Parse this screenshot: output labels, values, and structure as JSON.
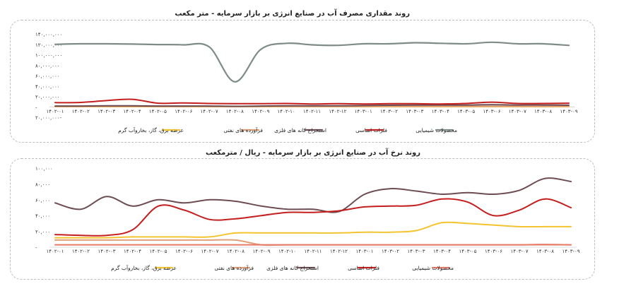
{
  "charts": [
    {
      "title": "روند مقداری مصرف آب در صنایع انرژی بر بازار سرمایه - متر مکعب",
      "y_tick_labels": [
        "-۲۰,۰۰۰,۰۰۰",
        "-",
        "۲۰,۰۰۰,۰۰۰",
        "۴۰,۰۰۰,۰۰۰",
        "۶۰,۰۰۰,۰۰۰",
        "۸۰,۰۰۰,۰۰۰",
        "۱۰۰,۰۰۰,۰۰۰",
        "۱۲۰,۰۰۰,۰۰۰",
        "۱۴۰,۰۰۰,۰۰۰"
      ],
      "legend": [
        "محصولات شیمیایی",
        "فلزات اساسی",
        "استخراج کانه های فلزی",
        "فرآورده های نفتی",
        "عرضه برق، گاز، بخاروآب گرم"
      ]
    },
    {
      "title": "روند نرخ آب در صنایع انرژی بر بازار سرمایه - ریال / مترمکعب",
      "y_tick_labels": [
        "-",
        "۲۰,۰۰۰",
        "۴۰,۰۰۰",
        "۶۰,۰۰۰",
        "۸۰,۰۰۰",
        "۱۰۰,۰۰۰"
      ],
      "legend": [
        "محصولات شیمیایی",
        "فلزات اساسی",
        "استخراج کانه های فلزی",
        "فرآورده های نفتی",
        "عرضه برق، گاز، بخاروآب گرم"
      ]
    }
  ],
  "chart_data": [
    {
      "type": "line",
      "title": "روند مقداری مصرف آب در صنایع انرژی بر بازار سرمایه - متر مکعب",
      "categories": [
        "۱۴۰۲-۰۱",
        "۱۴۰۲-۰۲",
        "۱۴۰۲-۰۳",
        "۱۴۰۲-۰۴",
        "۱۴۰۲-۰۵",
        "۱۴۰۲-۰۶",
        "۱۴۰۲-۰۷",
        "۱۴۰۲-۰۸",
        "۱۴۰۲-۰۹",
        "۱۴۰۲-۱۰",
        "۱۴۰۲-۱۱",
        "۱۴۰۲-۱۲",
        "۱۴۰۳-۰۱",
        "۱۴۰۳-۰۲",
        "۱۴۰۳-۰۳",
        "۱۴۰۳-۰۴",
        "۱۴۰۳-۰۵",
        "۱۴۰۳-۰۶",
        "۱۴۰۳-۰۷",
        "۱۴۰۳-۰۸",
        "۱۴۰۳-۰۹"
      ],
      "ylim": [
        -20000000,
        140000000
      ],
      "series": [
        {
          "name": "محصولات شیمیایی",
          "color": "#7f8c85",
          "values": [
            120000000,
            121000000,
            121000000,
            120500000,
            119500000,
            119000000,
            115000000,
            48000000,
            110000000,
            122000000,
            119000000,
            118000000,
            121000000,
            121000000,
            123000000,
            122000000,
            121000000,
            124000000,
            121000000,
            121000000,
            118000000
          ]
        },
        {
          "name": "فلزات اساسی",
          "color": "#c41e1e",
          "values": [
            8000000,
            8500000,
            12000000,
            14500000,
            7000000,
            7500000,
            6500000,
            6000000,
            6000000,
            6500000,
            5500000,
            6000000,
            5500000,
            6000000,
            6000000,
            5500000,
            6500000,
            9000000,
            6500000,
            6500000,
            7000000
          ]
        },
        {
          "name": "استخراج کانه های فلزی",
          "color": "#6d4c52",
          "values": [
            1500000,
            1500000,
            2000000,
            2000000,
            1500000,
            1500000,
            1500000,
            1000000,
            1500000,
            2000000,
            2000000,
            2000000,
            2500000,
            3000000,
            3500000,
            3500000,
            3500000,
            4000000,
            3500000,
            3500000,
            3000000
          ]
        },
        {
          "name": "فرآورده های نفتی",
          "color": "#e0a07a",
          "values": [
            800000,
            800000,
            900000,
            900000,
            800000,
            800000,
            800000,
            700000,
            800000,
            800000,
            800000,
            800000,
            900000,
            900000,
            900000,
            900000,
            900000,
            900000,
            900000,
            900000,
            900000
          ]
        },
        {
          "name": "عرضه برق، گاز، بخاروآب گرم",
          "color": "#f4c430",
          "values": [
            300000,
            300000,
            300000,
            300000,
            300000,
            300000,
            300000,
            300000,
            300000,
            300000,
            300000,
            300000,
            300000,
            300000,
            300000,
            300000,
            300000,
            300000,
            300000,
            300000,
            300000
          ]
        }
      ]
    },
    {
      "type": "line",
      "title": "روند نرخ آب در صنایع انرژی بر بازار سرمایه - ریال / مترمکعب",
      "categories": [
        "۱۴۰۲-۰۱",
        "۱۴۰۲-۰۲",
        "۱۴۰۲-۰۳",
        "۱۴۰۲-۰۴",
        "۱۴۰۲-۰۵",
        "۱۴۰۲-۰۶",
        "۱۴۰۲-۰۷",
        "۱۴۰۲-۰۸",
        "۱۴۰۲-۰۹",
        "۱۴۰۲-۱۰",
        "۱۴۰۲-۱۱",
        "۱۴۰۲-۱۲",
        "۱۴۰۳-۰۱",
        "۱۴۰۳-۰۲",
        "۱۴۰۳-۰۳",
        "۱۴۰۳-۰۴",
        "۱۴۰۳-۰۵",
        "۱۴۰۳-۰۶",
        "۱۴۰۳-۰۷",
        "۱۴۰۳-۰۸",
        "۱۴۰۳-۰۹"
      ],
      "ylim": [
        0,
        100000
      ],
      "series": [
        {
          "name": "محصولات شیمیایی",
          "color": "#e87a6a",
          "values": [
            3000,
            3000,
            3000,
            3000,
            3000,
            3000,
            3000,
            3000,
            3000,
            3000,
            3000,
            3000,
            3000,
            3000,
            3000,
            3000,
            3000,
            3000,
            3000,
            3500,
            3000
          ]
        },
        {
          "name": "فلزات اساسی",
          "color": "#c41e1e",
          "values": [
            16000,
            15000,
            15000,
            22000,
            52000,
            47000,
            35000,
            36000,
            40000,
            44000,
            44000,
            46000,
            51000,
            52000,
            53000,
            61000,
            57000,
            40000,
            47000,
            61000,
            50000
          ]
        },
        {
          "name": "استخراج کانه های فلزی",
          "color": "#6d4c52",
          "values": [
            56000,
            48000,
            64000,
            52000,
            60000,
            56000,
            60000,
            58000,
            52000,
            48000,
            48000,
            45000,
            67000,
            74000,
            71000,
            67000,
            69000,
            67000,
            72000,
            87000,
            83000
          ]
        },
        {
          "name": "فرآورده های نفتی",
          "color": "#e0a07a",
          "values": [
            9000,
            9000,
            9000,
            9000,
            9000,
            9000,
            9000,
            9000,
            3000,
            3000,
            3000,
            3000,
            3000,
            3000,
            3000,
            3000,
            3000,
            3000,
            3000,
            3000,
            3000
          ]
        },
        {
          "name": "عرضه برق، گاز، بخاروآب گرم",
          "color": "#f4c430",
          "values": [
            12000,
            12000,
            12000,
            13000,
            13000,
            13000,
            13000,
            18000,
            18000,
            18000,
            18000,
            18000,
            19000,
            19000,
            21000,
            31000,
            30000,
            28000,
            26000,
            26000,
            26000
          ]
        }
      ]
    }
  ]
}
